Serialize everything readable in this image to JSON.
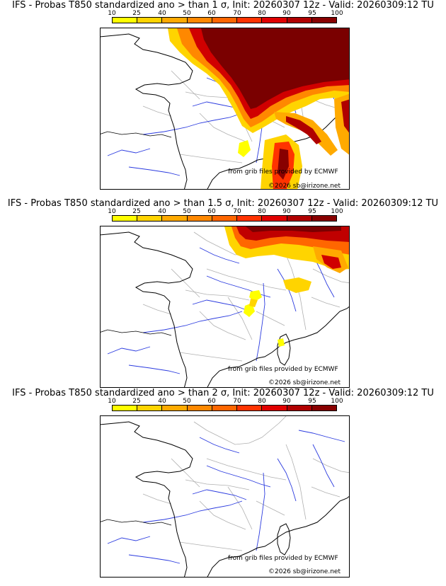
{
  "legend": {
    "ticks": [
      "10",
      "25",
      "40",
      "50",
      "60",
      "70",
      "80",
      "90",
      "95",
      "100"
    ],
    "colors": [
      "#ffff00",
      "#ffd400",
      "#ffaa00",
      "#ff8800",
      "#ff6600",
      "#ff3300",
      "#e00000",
      "#b00000",
      "#880000"
    ]
  },
  "panels": [
    {
      "title": "IFS - Probas T850  standardized ano > than 1 σ, Init: 20260307 12z - Valid: 20260309:12 TU"
    },
    {
      "title": "IFS - Probas T850  standardized ano > than 1.5 σ, Init: 20260307 12z - Valid: 20260309:12 TU"
    },
    {
      "title": "IFS - Probas T850  standardized ano > than 2 σ, Init: 20260307 12z - Valid: 20260309:12 TU"
    }
  ],
  "credits": {
    "source": "from grib files provided by ECMWF",
    "copyright": "©2026 sb@irizone.net"
  }
}
